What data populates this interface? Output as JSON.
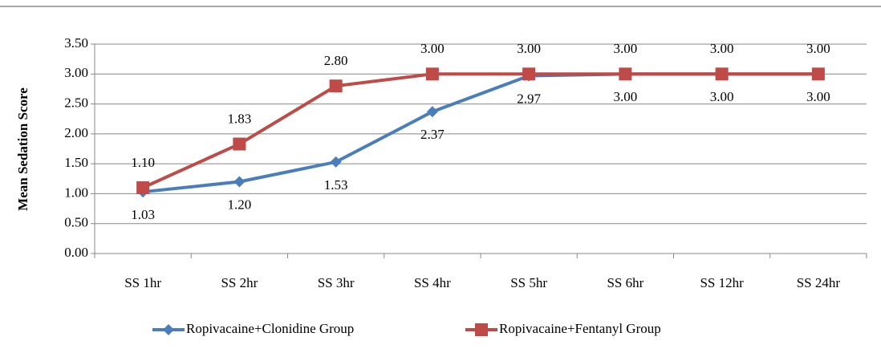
{
  "chart_data": {
    "type": "line",
    "y_label": "Mean Sedation Score",
    "categories": [
      "SS 1hr",
      "SS 2hr",
      "SS 3hr",
      "SS 4hr",
      "SS 5hr",
      "SS 6hr",
      "SS 12hr",
      "SS 24hr"
    ],
    "series": [
      {
        "name": "Ropivacaine+Clonidine Group",
        "color": "#4a7ebb",
        "marker": "diamond",
        "values": [
          1.03,
          1.2,
          1.53,
          2.37,
          2.97,
          3,
          3,
          3
        ],
        "value_labels": [
          "1.03",
          "1.20",
          "1.53",
          "2.37",
          "2.97",
          "3.00",
          "3.00",
          "3.00"
        ]
      },
      {
        "name": "Ropivacaine+Fentanyl Group",
        "color": "#be4b48",
        "marker": "square",
        "values": [
          1.1,
          1.83,
          2.8,
          3,
          3,
          3,
          3,
          3
        ],
        "value_labels": [
          "1.10",
          "1.83",
          "2.80",
          "3.00",
          "3.00",
          "3.00",
          "3.00",
          "3.00"
        ]
      }
    ],
    "ylim": [
      0,
      3.5
    ],
    "yticks": [
      {
        "value": 0,
        "label": "0.00"
      },
      {
        "value": 0.5,
        "label": "0.50"
      },
      {
        "value": 1,
        "label": "1.00"
      },
      {
        "value": 1.5,
        "label": "1.50"
      },
      {
        "value": 2,
        "label": "2.00"
      },
      {
        "value": 2.5,
        "label": "2.50"
      },
      {
        "value": 3,
        "label": "3.00"
      },
      {
        "value": 3.5,
        "label": "3.50"
      }
    ],
    "grid": true,
    "legend": "bottom"
  }
}
